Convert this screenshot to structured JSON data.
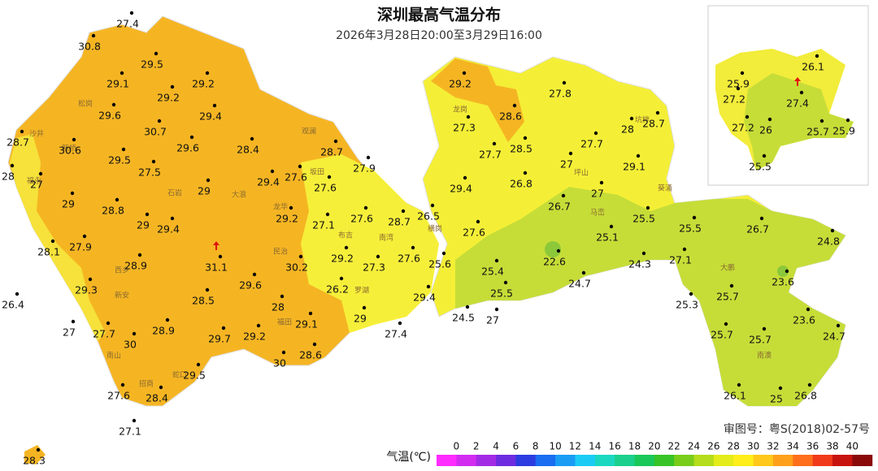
{
  "title": "深圳最高气温分布",
  "subtitle": "2026年3月28日20:00至3月29日16:00",
  "map_approval": "审图号：粤S(2018)02-57号",
  "districts": [
    "沙井",
    "松岗",
    "新桥",
    "福永",
    "西乡",
    "新安",
    "南山",
    "招商",
    "蛇口",
    "石岩",
    "大浪",
    "民治",
    "龙华",
    "观澜",
    "坂田",
    "布吉",
    "南湾",
    "横岗",
    "龙岗",
    "坪山",
    "坑梓",
    "马峦",
    "葵涌",
    "大鹏",
    "南澳",
    "福田",
    "罗湖"
  ],
  "stations": [
    27.4,
    30.8,
    29.5,
    29.1,
    29.2,
    29.2,
    29.6,
    29.4,
    30.7,
    29.6,
    28.7,
    30.6,
    28.4,
    29.5,
    27.5,
    28.7,
    27.9,
    28,
    27,
    27.6,
    29.4,
    29,
    27.6,
    29,
    28.8,
    29.2,
    27.1,
    27.6,
    28.7,
    26.5,
    29,
    29.4,
    27.6,
    28.1,
    27.9,
    31.1,
    30.2,
    29.2,
    27.3,
    27.6,
    25.6,
    28.9,
    29.6,
    26.2,
    29.3,
    28.5,
    28,
    29.4,
    26.4,
    27,
    27.7,
    28.9,
    29.1,
    29,
    27.4,
    24.5,
    27,
    30,
    29.7,
    29.2,
    28.6,
    30,
    29.5,
    27.6,
    28.4,
    27.1,
    28.3,
    29.2,
    27.8,
    27.3,
    28.6,
    28,
    28.7,
    27.7,
    28.5,
    27.7,
    27,
    29.1,
    26.8,
    27,
    29.4,
    26.7,
    25.5,
    25.1,
    25.4,
    22.6,
    27.1,
    24.3,
    24.7,
    25.5,
    25.5,
    26.7,
    24.8,
    23.6,
    25.3,
    25.7,
    23.6,
    25.7,
    25.7,
    24.7,
    26.1,
    25,
    26.8,
    26.1,
    25.9,
    27.2,
    27.4,
    27.2,
    26,
    25.7,
    25.9,
    25.5
  ],
  "legend": {
    "label": "气温(℃)",
    "ticks": [
      0,
      2,
      4,
      6,
      8,
      10,
      12,
      14,
      16,
      18,
      20,
      22,
      24,
      26,
      28,
      30,
      32,
      34,
      36,
      38,
      40
    ],
    "colors": [
      "#ff2cff",
      "#d22cf0",
      "#a22ce6",
      "#6e2ce0",
      "#2c3ce0",
      "#1a6cf0",
      "#1a9cf5",
      "#1accf5",
      "#1ad8c0",
      "#1ad08c",
      "#1ac85a",
      "#38c426",
      "#78cc1a",
      "#b4dc1a",
      "#e4ec1a",
      "#ffee1a",
      "#ffc81a",
      "#ffa01a",
      "#ff6e1a",
      "#f03a1a",
      "#c8140e",
      "#8a0a0a"
    ]
  }
}
